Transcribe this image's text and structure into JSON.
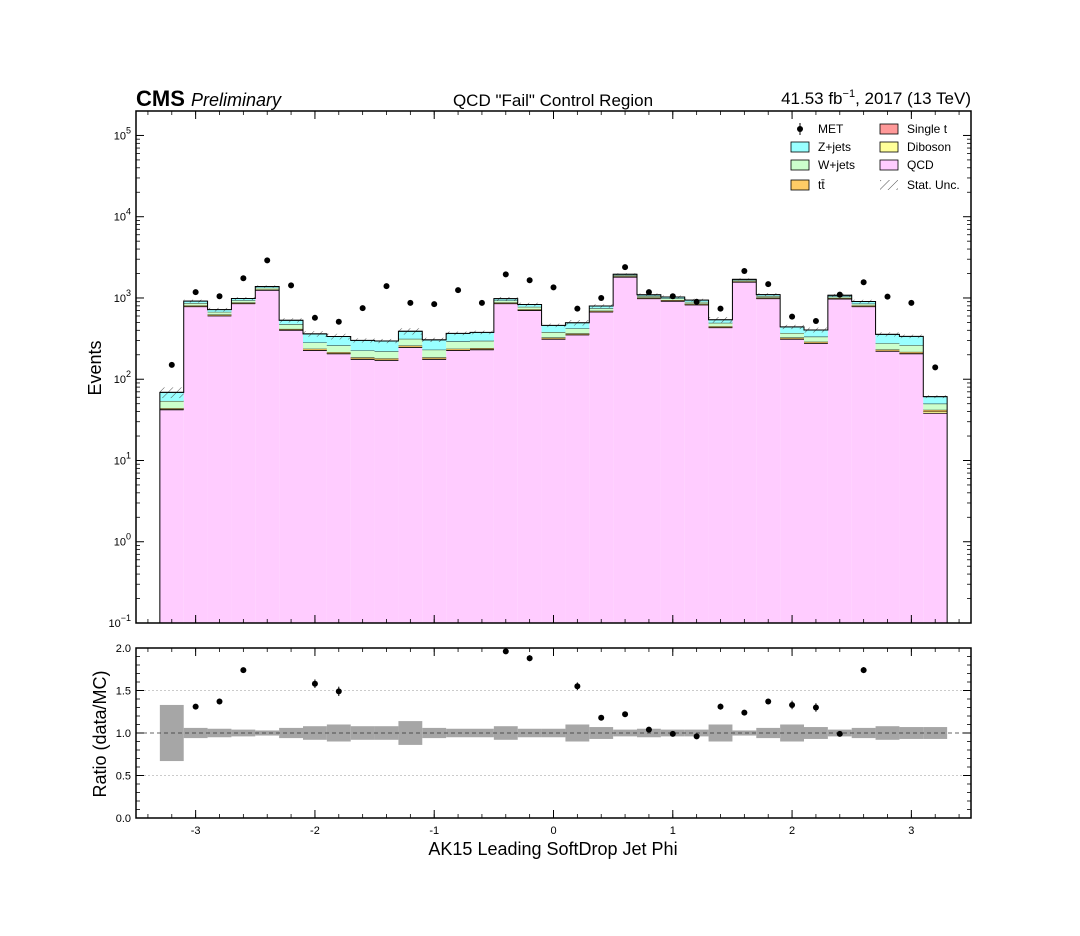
{
  "header": {
    "experiment": "CMS",
    "status": "Preliminary",
    "title": "QCD \"Fail\" Control Region",
    "lumi_value": "41.53 fb",
    "lumi_exp": "−1",
    "lumi_rest": ", 2017 (13 TeV)"
  },
  "chart_data": [
    {
      "type": "bar",
      "subtype": "stacked-histogram-log",
      "xlabel": "AK15 Leading SoftDrop Jet Phi",
      "ylabel": "Events",
      "xlim": [
        -3.5,
        3.5
      ],
      "ylim": [
        0.1,
        200000
      ],
      "yscale": "log",
      "x_ticks": [
        -3,
        -2,
        -1,
        0,
        1,
        2,
        3
      ],
      "x_tick_labels": [
        "-3",
        "-2",
        "-1",
        "0",
        "1",
        "2",
        "3"
      ],
      "y_ticks": [
        {
          "value": 0.1,
          "base": "10",
          "exp": "−1"
        },
        {
          "value": 1,
          "base": "10",
          "exp": "0"
        },
        {
          "value": 10,
          "base": "10",
          "exp": "1"
        },
        {
          "value": 100,
          "base": "10",
          "exp": "2"
        },
        {
          "value": 1000,
          "base": "10",
          "exp": "3"
        },
        {
          "value": 10000,
          "base": "10",
          "exp": "4"
        },
        {
          "value": 100000,
          "base": "10",
          "exp": "5"
        }
      ],
      "bin_edges": [
        -3.3,
        -3.1,
        -2.9,
        -2.7,
        -2.5,
        -2.3,
        -2.1,
        -1.9,
        -1.7,
        -1.5,
        -1.3,
        -1.1,
        -0.9,
        -0.7,
        -0.5,
        -0.3,
        -0.1,
        0.1,
        0.3,
        0.5,
        0.7,
        0.9,
        1.1,
        1.3,
        1.5,
        1.7,
        1.9,
        2.1,
        2.3,
        2.5,
        2.7,
        2.9,
        3.1,
        3.3
      ],
      "series": [
        {
          "name": "QCD",
          "color": "#ffccff",
          "values": [
            42,
            780,
            600,
            850,
            1240,
            400,
            225,
            205,
            175,
            170,
            245,
            175,
            225,
            230,
            850,
            700,
            310,
            350,
            670,
            1800,
            980,
            910,
            820,
            430,
            1560,
            980,
            310,
            275,
            970,
            780,
            220,
            205,
            38
          ]
        },
        {
          "name": "Single t",
          "color": "#ff9999",
          "values": [
            0.5,
            8,
            6,
            8,
            10,
            4,
            2.5,
            2,
            2,
            2,
            3,
            2,
            2.5,
            2.5,
            8,
            7,
            3.5,
            4,
            7,
            15,
            9,
            9,
            8,
            4.5,
            12,
            9,
            3.5,
            3,
            9,
            8,
            2.5,
            2.5,
            0.5
          ]
        },
        {
          "name": "Diboson",
          "color": "#ffff99",
          "values": [
            0.5,
            4,
            3,
            4,
            5,
            2,
            1.5,
            1.5,
            1.5,
            1.5,
            2,
            1.5,
            1.5,
            1.5,
            4,
            4,
            2,
            2,
            4,
            7,
            5,
            5,
            4,
            2.5,
            6,
            5,
            2,
            2,
            5,
            4,
            1.5,
            1.5,
            1.5
          ]
        },
        {
          "name": "tt̄",
          "color": "#ffcc66",
          "values": [
            1,
            18,
            15,
            18,
            20,
            10,
            8,
            7,
            7,
            7,
            9,
            7,
            8,
            8,
            18,
            16,
            10,
            10,
            15,
            30,
            20,
            20,
            18,
            12,
            28,
            20,
            10,
            9,
            20,
            18,
            8,
            8,
            2
          ]
        },
        {
          "name": "W+jets",
          "color": "#ccffcc",
          "values": [
            10,
            55,
            50,
            55,
            60,
            60,
            45,
            45,
            40,
            40,
            55,
            45,
            55,
            55,
            50,
            50,
            55,
            55,
            50,
            60,
            45,
            45,
            45,
            45,
            45,
            45,
            45,
            45,
            35,
            40,
            45,
            45,
            8
          ]
        },
        {
          "name": "Z+jets",
          "color": "#99ffff",
          "values": [
            15,
            50,
            45,
            50,
            50,
            55,
            80,
            75,
            75,
            75,
            75,
            75,
            75,
            80,
            50,
            55,
            80,
            75,
            50,
            45,
            35,
            40,
            45,
            45,
            45,
            40,
            70,
            70,
            40,
            55,
            80,
            75,
            11
          ]
        }
      ],
      "stat_unc_rel": [
        0.15,
        0.04,
        0.05,
        0.04,
        0.03,
        0.06,
        0.08,
        0.08,
        0.06,
        0.06,
        0.09,
        0.06,
        0.05,
        0.05,
        0.05,
        0.05,
        0.05,
        0.08,
        0.05,
        0.03,
        0.04,
        0.04,
        0.04,
        0.08,
        0.03,
        0.04,
        0.06,
        0.07,
        0.04,
        0.05,
        0.06,
        0.05,
        0.04
      ],
      "data": {
        "name": "MET",
        "x": [
          -3.2,
          -3.0,
          -2.8,
          -2.6,
          -2.4,
          -2.2,
          -2.0,
          -1.8,
          -1.6,
          -1.4,
          -1.2,
          -1.0,
          -0.8,
          -0.6,
          -0.4,
          -0.2,
          0.0,
          0.2,
          0.4,
          0.6,
          0.8,
          1.0,
          1.2,
          1.4,
          1.6,
          1.8,
          2.0,
          2.2,
          2.4,
          2.6,
          2.8,
          3.0,
          3.2
        ],
        "y": [
          150,
          1180,
          1050,
          1750,
          2900,
          1430,
          570,
          510,
          750,
          1400,
          870,
          840,
          1250,
          870,
          1950,
          1650,
          1350,
          740,
          1000,
          2400,
          1180,
          1050,
          900,
          740,
          2150,
          1480,
          590,
          520,
          1100,
          1560,
          1040,
          870,
          140
        ]
      },
      "legend": {
        "placement": "top-right",
        "entries": [
          "MET",
          "Z+jets",
          "W+jets",
          "tt̄",
          "Single t",
          "Diboson",
          "QCD",
          "Stat. Unc."
        ]
      }
    },
    {
      "type": "scatter",
      "subtype": "ratio-panel",
      "xlabel": "AK15 Leading SoftDrop Jet Phi",
      "ylabel": "Ratio (data/MC)",
      "xlim": [
        -3.5,
        3.5
      ],
      "ylim": [
        0,
        2
      ],
      "y_ticks": [
        0,
        0.5,
        1.0,
        1.5,
        2.0
      ],
      "y_tick_labels": [
        "0.0",
        "0.5",
        "1.0",
        "1.5",
        "2.0"
      ],
      "grid_lines": [
        0.5,
        1.5
      ],
      "reference_line": 1.0,
      "points": {
        "x": [
          -3.0,
          -2.8,
          -2.6,
          -2.0,
          -1.8,
          -0.4,
          -0.2,
          0.2,
          0.4,
          0.6,
          0.8,
          1.0,
          1.2,
          1.4,
          1.6,
          1.8,
          2.0,
          2.2,
          2.4,
          2.6
        ],
        "y": [
          1.31,
          1.37,
          1.74,
          1.58,
          1.49,
          1.96,
          1.88,
          1.55,
          1.18,
          1.22,
          1.04,
          0.99,
          0.96,
          1.31,
          1.24,
          1.37,
          1.33,
          1.3,
          0.99,
          1.74
        ],
        "err": [
          0.03,
          0.035,
          0.03,
          0.05,
          0.055,
          0.03,
          0.035,
          0.045,
          0.03,
          0.025,
          0.03,
          0.03,
          0.03,
          0.035,
          0.025,
          0.03,
          0.05,
          0.05,
          0.03,
          0.035
        ]
      },
      "unc_band": [
        0.33,
        0.06,
        0.05,
        0.04,
        0.03,
        0.06,
        0.08,
        0.1,
        0.08,
        0.08,
        0.14,
        0.06,
        0.05,
        0.05,
        0.08,
        0.05,
        0.05,
        0.1,
        0.07,
        0.04,
        0.05,
        0.04,
        0.04,
        0.1,
        0.03,
        0.06,
        0.1,
        0.07,
        0.04,
        0.06,
        0.08,
        0.07,
        0.07
      ]
    }
  ]
}
